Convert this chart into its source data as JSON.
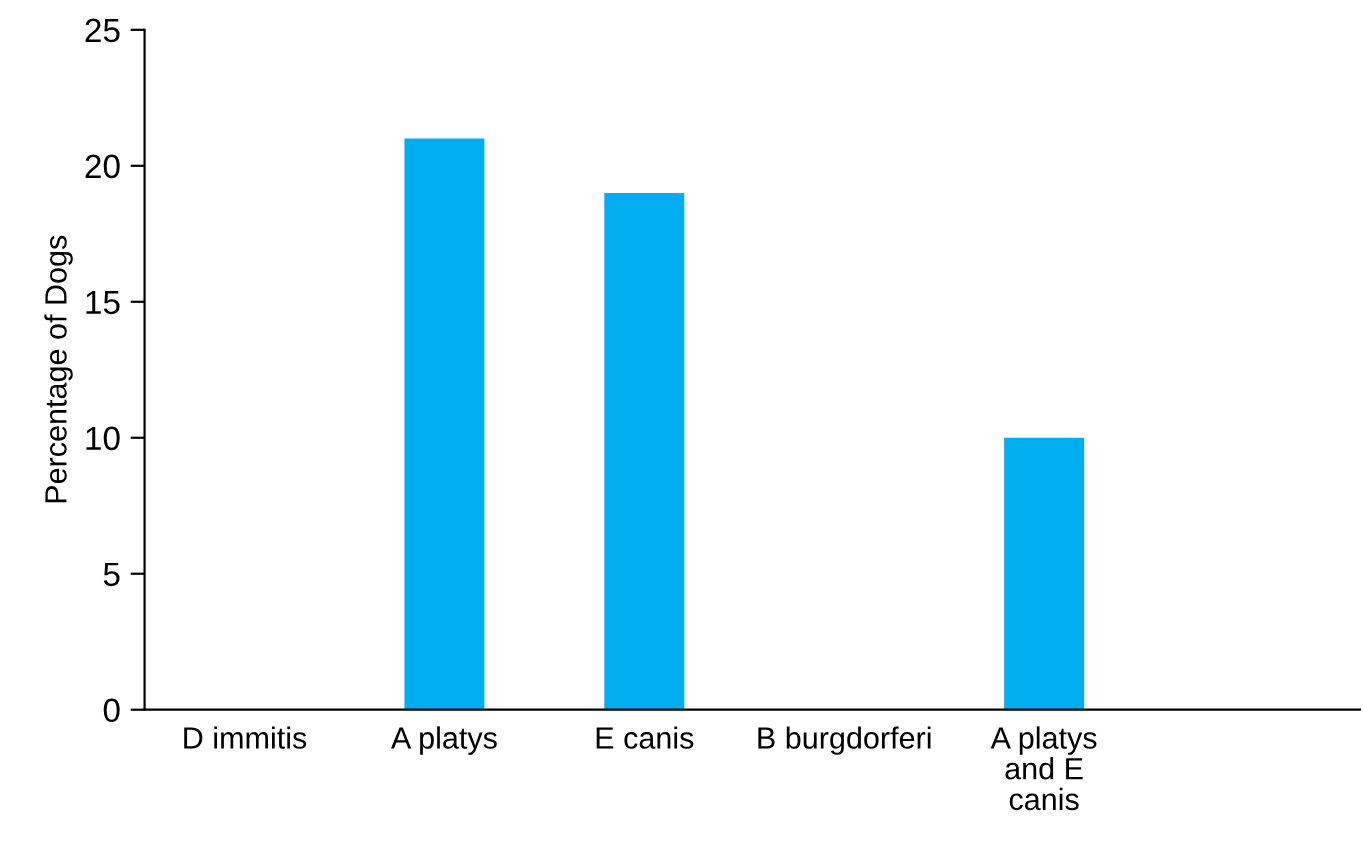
{
  "chart_data": {
    "type": "bar",
    "ylabel": "Percentage of Dogs",
    "categories": [
      "D immitis",
      "A platys",
      "E canis",
      "B burgdorferi",
      "A platys\nand E\ncanis"
    ],
    "values": [
      0,
      21,
      19,
      0,
      10
    ],
    "color": "#00aeef",
    "ylim": [
      0,
      25
    ],
    "yticks": [
      0,
      5,
      10,
      15,
      20,
      25
    ],
    "grid": false,
    "legend": false
  }
}
